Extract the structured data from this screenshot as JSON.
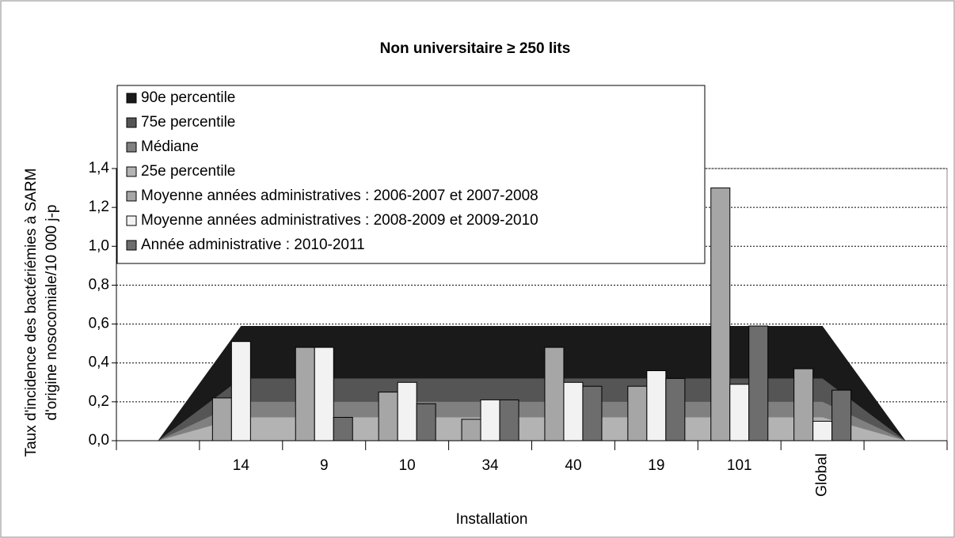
{
  "chart_data": {
    "type": "combo",
    "title": "Non universitaire ≥ 250 lits",
    "x_label": "Installation",
    "y_label": [
      "Taux d'incidence des bactériémies à SARM",
      "d'origine nosocomiale/10 000 j-p"
    ],
    "categories": [
      null,
      "14",
      "9",
      "10",
      "34",
      "40",
      "19",
      "101",
      "Global",
      null
    ],
    "ylim": [
      0,
      1.4
    ],
    "yticks": [
      {
        "value": 0,
        "label": "0,0"
      },
      {
        "value": 0.2,
        "label": "0,2"
      },
      {
        "value": 0.4,
        "label": "0,4"
      },
      {
        "value": 0.6,
        "label": "0,6"
      },
      {
        "value": 0.8,
        "label": "0,8"
      },
      {
        "value": 1.0,
        "label": "1,0"
      },
      {
        "value": 1.2,
        "label": "1,2"
      },
      {
        "value": 1.4,
        "label": "1,4"
      }
    ],
    "grid": true,
    "series": [
      {
        "name": "90e percentile",
        "type": "area",
        "color": "#1a1a1a",
        "values": [
          0,
          0.59,
          0.59,
          0.59,
          0.59,
          0.59,
          0.59,
          0.59,
          0.59,
          0
        ]
      },
      {
        "name": "75e percentile",
        "type": "area",
        "color": "#555555",
        "values": [
          0,
          0.32,
          0.32,
          0.32,
          0.32,
          0.32,
          0.32,
          0.32,
          0.32,
          0
        ]
      },
      {
        "name": "Médiane",
        "type": "area",
        "color": "#808080",
        "values": [
          0,
          0.2,
          0.2,
          0.2,
          0.2,
          0.2,
          0.2,
          0.2,
          0.2,
          0
        ]
      },
      {
        "name": "25e percentile",
        "type": "area",
        "color": "#b3b3b3",
        "values": [
          0,
          0.12,
          0.12,
          0.12,
          0.12,
          0.12,
          0.12,
          0.12,
          0.12,
          0
        ]
      },
      {
        "name": "Moyenne années administratives : 2006-2007 et 2007-2008",
        "type": "bar",
        "color": "#a6a6a6",
        "values": [
          null,
          0.22,
          0.48,
          0.25,
          0.11,
          0.48,
          0.28,
          1.3,
          0.37,
          null
        ]
      },
      {
        "name": "Moyenne années administratives : 2008-2009 et 2009-2010",
        "type": "bar",
        "color": "#f2f2f2",
        "values": [
          null,
          0.51,
          0.48,
          0.3,
          0.21,
          0.3,
          0.36,
          0.29,
          0.1,
          null
        ]
      },
      {
        "name": "Année administrative : 2010-2011",
        "type": "bar",
        "color": "#6d6d6d",
        "values": [
          null,
          null,
          0.12,
          0.19,
          0.21,
          0.28,
          0.32,
          0.59,
          0.26,
          null
        ]
      }
    ]
  }
}
